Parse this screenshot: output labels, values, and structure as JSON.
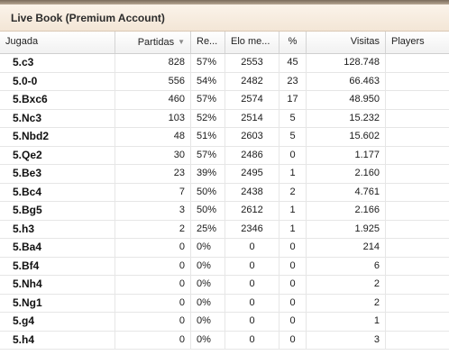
{
  "window": {
    "title": "Live Book (Premium Account)"
  },
  "table": {
    "headers": {
      "move": "Jugada",
      "games": "Partidas",
      "result": "Re...",
      "elo": "Elo me...",
      "pct": "%",
      "visits": "Visitas",
      "players": "Players"
    },
    "sort_icon": "sort-descending-icon",
    "rows": [
      {
        "move": "5.c3",
        "games": "828",
        "result": "57%",
        "elo": "2553",
        "pct": "45",
        "visits": "128.748",
        "players": ""
      },
      {
        "move": "5.0-0",
        "games": "556",
        "result": "54%",
        "elo": "2482",
        "pct": "23",
        "visits": "66.463",
        "players": ""
      },
      {
        "move": "5.Bxc6",
        "games": "460",
        "result": "57%",
        "elo": "2574",
        "pct": "17",
        "visits": "48.950",
        "players": ""
      },
      {
        "move": "5.Nc3",
        "games": "103",
        "result": "52%",
        "elo": "2514",
        "pct": "5",
        "visits": "15.232",
        "players": ""
      },
      {
        "move": "5.Nbd2",
        "games": "48",
        "result": "51%",
        "elo": "2603",
        "pct": "5",
        "visits": "15.602",
        "players": ""
      },
      {
        "move": "5.Qe2",
        "games": "30",
        "result": "57%",
        "elo": "2486",
        "pct": "0",
        "visits": "1.177",
        "players": ""
      },
      {
        "move": "5.Be3",
        "games": "23",
        "result": "39%",
        "elo": "2495",
        "pct": "1",
        "visits": "2.160",
        "players": ""
      },
      {
        "move": "5.Bc4",
        "games": "7",
        "result": "50%",
        "elo": "2438",
        "pct": "2",
        "visits": "4.761",
        "players": ""
      },
      {
        "move": "5.Bg5",
        "games": "3",
        "result": "50%",
        "elo": "2612",
        "pct": "1",
        "visits": "2.166",
        "players": ""
      },
      {
        "move": "5.h3",
        "games": "2",
        "result": "25%",
        "elo": "2346",
        "pct": "1",
        "visits": "1.925",
        "players": ""
      },
      {
        "move": "5.Ba4",
        "games": "0",
        "result": "0%",
        "elo": "0",
        "pct": "0",
        "visits": "214",
        "players": ""
      },
      {
        "move": "5.Bf4",
        "games": "0",
        "result": "0%",
        "elo": "0",
        "pct": "0",
        "visits": "6",
        "players": ""
      },
      {
        "move": "5.Nh4",
        "games": "0",
        "result": "0%",
        "elo": "0",
        "pct": "0",
        "visits": "2",
        "players": ""
      },
      {
        "move": "5.Ng1",
        "games": "0",
        "result": "0%",
        "elo": "0",
        "pct": "0",
        "visits": "2",
        "players": ""
      },
      {
        "move": "5.g4",
        "games": "0",
        "result": "0%",
        "elo": "0",
        "pct": "0",
        "visits": "1",
        "players": ""
      },
      {
        "move": "5.h4",
        "games": "0",
        "result": "0%",
        "elo": "0",
        "pct": "0",
        "visits": "3",
        "players": ""
      }
    ]
  }
}
